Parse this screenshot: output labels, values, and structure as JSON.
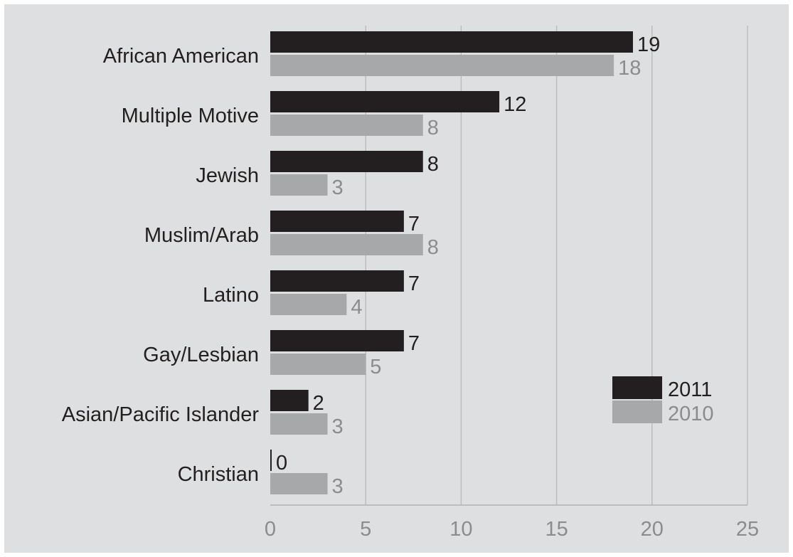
{
  "chart_data": {
    "type": "bar",
    "orientation": "horizontal",
    "title": "",
    "xlabel": "",
    "ylabel": "",
    "categories": [
      "African American",
      "Multiple Motive",
      "Jewish",
      "Muslim/Arab",
      "Latino",
      "Gay/Lesbian",
      "Asian/Pacific Islander",
      "Christian"
    ],
    "series": [
      {
        "name": "2011",
        "color": "#231f20",
        "values": [
          19,
          12,
          8,
          7,
          7,
          7,
          2,
          0
        ]
      },
      {
        "name": "2010",
        "color": "#a7a8aa",
        "values": [
          18,
          8,
          3,
          8,
          4,
          5,
          3,
          3
        ]
      }
    ],
    "xlim": [
      0,
      25
    ],
    "xticks": [
      0,
      5,
      10,
      15,
      20,
      25
    ],
    "grid": "vertical",
    "legend_position": "bottom-right",
    "colors": {
      "background": "#dedfe0",
      "grid": "#bcbdbf",
      "tick_text": "#8b8c8e"
    }
  }
}
